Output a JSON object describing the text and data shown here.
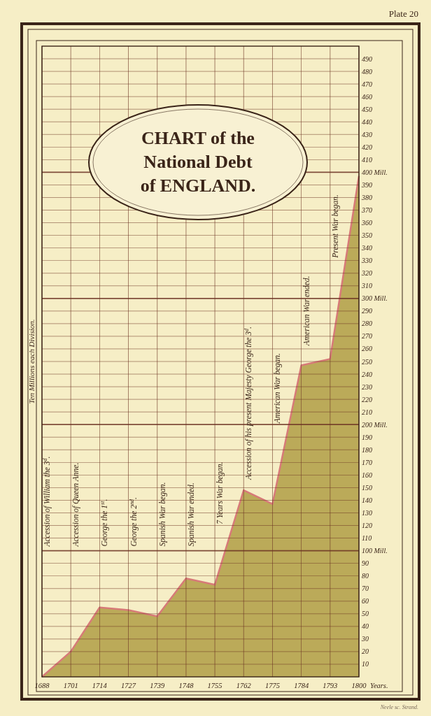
{
  "chart_data": {
    "type": "area",
    "title": "CHART of the National Debt of ENGLAND.",
    "xlabel": "Years.",
    "ylabel": "Ten Millions each Division.",
    "categories": [
      "1688",
      "1701",
      "1714",
      "1727",
      "1739",
      "1748",
      "1755",
      "1762",
      "1775",
      "1784",
      "1793",
      "1800"
    ],
    "series": [
      {
        "color": "#b5a24c",
        "values": [
          0,
          20,
          55,
          53,
          48,
          78,
          73,
          148,
          137,
          247,
          252,
          397
        ]
      }
    ],
    "ylim": [
      0,
      500
    ],
    "yticks": [
      10,
      20,
      30,
      40,
      50,
      60,
      70,
      80,
      90,
      {
        "value": 100,
        "label": "100 Mill."
      },
      110,
      120,
      130,
      140,
      150,
      160,
      170,
      180,
      190,
      {
        "value": 200,
        "label": "200 Mill."
      },
      210,
      220,
      230,
      240,
      250,
      260,
      270,
      280,
      290,
      {
        "value": 300,
        "label": "300 Mill."
      },
      310,
      320,
      330,
      340,
      350,
      360,
      370,
      380,
      390,
      {
        "value": 400,
        "label": "400 Mill."
      },
      410,
      420,
      430,
      440,
      450,
      460,
      470,
      480,
      490
    ],
    "grid": true,
    "annotations": [
      "Plate 20",
      "Neele sc. Strand.",
      "Accession of William the 3$^{d}$.",
      "Accession of Queen Anne.",
      "George the 1$^{st}$.",
      "George the 2$^{nd}$.",
      "Spanish War began.",
      "Spanish War ended.",
      "7 Years War began.",
      "Accession of his present Majesty George the 3$^{d}$.",
      "American War began.",
      "American War ended.",
      "Present War began."
    ]
  }
}
